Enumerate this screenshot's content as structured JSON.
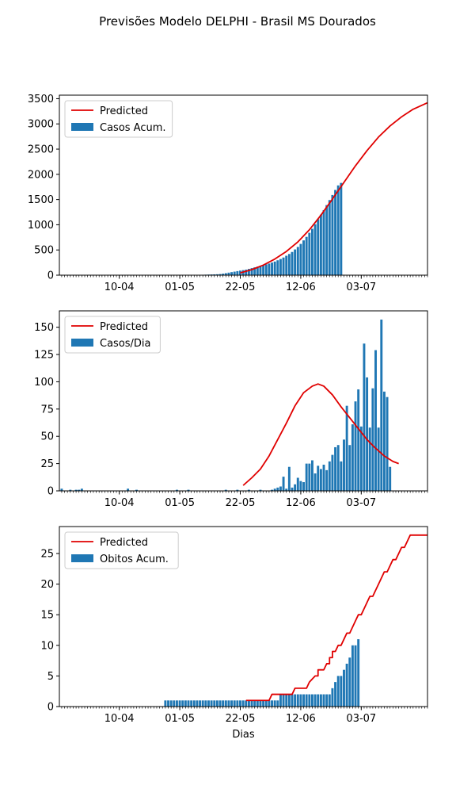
{
  "figure": {
    "title": "Previsões Modelo DELPHI - Brasil MS Dourados",
    "colors": {
      "bar": "#1f77b4",
      "predicted": "#e00000",
      "axis": "#000000"
    }
  },
  "chart_data": [
    {
      "type": "bar",
      "x_unit": "days since 21-03",
      "xlim": [
        -0.8,
        127
      ],
      "ylim": [
        0,
        3570
      ],
      "yticks": [
        0,
        500,
        1000,
        1500,
        2000,
        2500,
        3000,
        3500
      ],
      "xticks": [
        {
          "day": 20,
          "label": "10-04"
        },
        {
          "day": 41,
          "label": "01-05"
        },
        {
          "day": 62,
          "label": "22-05"
        },
        {
          "day": 83,
          "label": "12-06"
        },
        {
          "day": 104,
          "label": "03-07"
        }
      ],
      "xlabel": "",
      "legend": {
        "position": "upper left",
        "entries": [
          "Predicted",
          "Casos Acum."
        ]
      },
      "bars": {
        "name": "Casos Acum.",
        "start_day": 41,
        "values": [
          1,
          2,
          2,
          3,
          3,
          5,
          6,
          7,
          8,
          10,
          12,
          14,
          16,
          18,
          22,
          30,
          40,
          50,
          60,
          70,
          80,
          90,
          100,
          110,
          125,
          140,
          155,
          170,
          185,
          200,
          215,
          230,
          250,
          270,
          295,
          320,
          350,
          385,
          420,
          460,
          510,
          560,
          620,
          690,
          760,
          840,
          920,
          1010,
          1110,
          1200,
          1290,
          1390,
          1490,
          1590,
          1690,
          1780,
          1830
        ]
      },
      "predicted": {
        "name": "Predicted",
        "points": [
          [
            62,
            45
          ],
          [
            66,
            110
          ],
          [
            70,
            200
          ],
          [
            74,
            320
          ],
          [
            78,
            470
          ],
          [
            82,
            660
          ],
          [
            86,
            900
          ],
          [
            90,
            1190
          ],
          [
            94,
            1510
          ],
          [
            98,
            1840
          ],
          [
            102,
            2170
          ],
          [
            106,
            2470
          ],
          [
            110,
            2740
          ],
          [
            114,
            2960
          ],
          [
            118,
            3140
          ],
          [
            122,
            3290
          ],
          [
            127,
            3420
          ]
        ]
      }
    },
    {
      "type": "bar",
      "x_unit": "days since 21-03",
      "xlim": [
        -0.8,
        127
      ],
      "ylim": [
        0,
        165
      ],
      "yticks": [
        0,
        25,
        50,
        75,
        100,
        125,
        150
      ],
      "xticks": [
        {
          "day": 20,
          "label": "10-04"
        },
        {
          "day": 41,
          "label": "01-05"
        },
        {
          "day": 62,
          "label": "22-05"
        },
        {
          "day": 83,
          "label": "12-06"
        },
        {
          "day": 104,
          "label": "03-07"
        }
      ],
      "xlabel": "",
      "legend": {
        "position": "upper left",
        "entries": [
          "Predicted",
          "Casos/Dia"
        ]
      },
      "bars": {
        "name": "Casos/Dia",
        "start_day": 0,
        "values": [
          2,
          0,
          0,
          1,
          0,
          1,
          1,
          2,
          0,
          0,
          0,
          0,
          0,
          0,
          0,
          0,
          0,
          0,
          0,
          0,
          0,
          0,
          0,
          2,
          0,
          0,
          1,
          0,
          0,
          0,
          0,
          0,
          0,
          0,
          0,
          0,
          0,
          0,
          0,
          0,
          1,
          0,
          0,
          0,
          1,
          0,
          0,
          0,
          0,
          0,
          0,
          0,
          0,
          0,
          0,
          0,
          0,
          1,
          0,
          0,
          0,
          1,
          0,
          0,
          0,
          1,
          0,
          0,
          0,
          1,
          0,
          0,
          0,
          1,
          2,
          3,
          4,
          13,
          2,
          22,
          3,
          6,
          12,
          9,
          8,
          25,
          25,
          28,
          16,
          23,
          20,
          24,
          19,
          27,
          33,
          40,
          42,
          27,
          47,
          78,
          42,
          61,
          82,
          93,
          59,
          135,
          104,
          58,
          94,
          129,
          58,
          157,
          91,
          86,
          22
        ]
      },
      "predicted": {
        "name": "Predicted",
        "points": [
          [
            63,
            5
          ],
          [
            66,
            12
          ],
          [
            69,
            20
          ],
          [
            72,
            32
          ],
          [
            75,
            47
          ],
          [
            78,
            62
          ],
          [
            81,
            78
          ],
          [
            84,
            90
          ],
          [
            87,
            96
          ],
          [
            89,
            98
          ],
          [
            91,
            96
          ],
          [
            94,
            88
          ],
          [
            97,
            77
          ],
          [
            100,
            67
          ],
          [
            103,
            57
          ],
          [
            106,
            47
          ],
          [
            109,
            39
          ],
          [
            112,
            32
          ],
          [
            115,
            27
          ],
          [
            117,
            25
          ]
        ]
      }
    },
    {
      "type": "bar",
      "x_unit": "days since 21-03",
      "xlim": [
        -0.8,
        127
      ],
      "ylim": [
        0,
        29.4
      ],
      "yticks": [
        0,
        5,
        10,
        15,
        20,
        25
      ],
      "xticks": [
        {
          "day": 20,
          "label": "10-04"
        },
        {
          "day": 41,
          "label": "01-05"
        },
        {
          "day": 62,
          "label": "22-05"
        },
        {
          "day": 83,
          "label": "12-06"
        },
        {
          "day": 104,
          "label": "03-07"
        }
      ],
      "xlabel": "Dias",
      "legend": {
        "position": "upper left",
        "entries": [
          "Predicted",
          "Obitos Acum."
        ]
      },
      "bars": {
        "name": "Obitos Acum.",
        "start_day": 36,
        "values": [
          1,
          1,
          1,
          1,
          1,
          1,
          1,
          1,
          1,
          1,
          1,
          1,
          1,
          1,
          1,
          1,
          1,
          1,
          1,
          1,
          1,
          1,
          1,
          1,
          1,
          1,
          1,
          1,
          1,
          1,
          1,
          1,
          1,
          1,
          1,
          1,
          1,
          1,
          1,
          1,
          2,
          2,
          2,
          2,
          2,
          2,
          2,
          2,
          2,
          2,
          2,
          2,
          2,
          2,
          2,
          2,
          2,
          2,
          3,
          4,
          5,
          5,
          6,
          7,
          8,
          10,
          10,
          11
        ]
      },
      "predicted": {
        "name": "Predicted",
        "points": [
          [
            64,
            1
          ],
          [
            72,
            1
          ],
          [
            73,
            2
          ],
          [
            80,
            2
          ],
          [
            81,
            3
          ],
          [
            85,
            3
          ],
          [
            86,
            4
          ],
          [
            88,
            5
          ],
          [
            89,
            5
          ],
          [
            89,
            6
          ],
          [
            91,
            6
          ],
          [
            92,
            7
          ],
          [
            93,
            7
          ],
          [
            93,
            8
          ],
          [
            94,
            8
          ],
          [
            94,
            9
          ],
          [
            95,
            9
          ],
          [
            96,
            10
          ],
          [
            97,
            10
          ],
          [
            98,
            11
          ],
          [
            99,
            12
          ],
          [
            100,
            12
          ],
          [
            101,
            13
          ],
          [
            102,
            14
          ],
          [
            103,
            15
          ],
          [
            104,
            15
          ],
          [
            105,
            16
          ],
          [
            106,
            17
          ],
          [
            107,
            18
          ],
          [
            108,
            18
          ],
          [
            109,
            19
          ],
          [
            110,
            20
          ],
          [
            111,
            21
          ],
          [
            112,
            22
          ],
          [
            113,
            22
          ],
          [
            114,
            23
          ],
          [
            115,
            24
          ],
          [
            116,
            24
          ],
          [
            117,
            25
          ],
          [
            118,
            26
          ],
          [
            119,
            26
          ],
          [
            120,
            27
          ],
          [
            121,
            28
          ],
          [
            127,
            28
          ]
        ]
      }
    }
  ]
}
